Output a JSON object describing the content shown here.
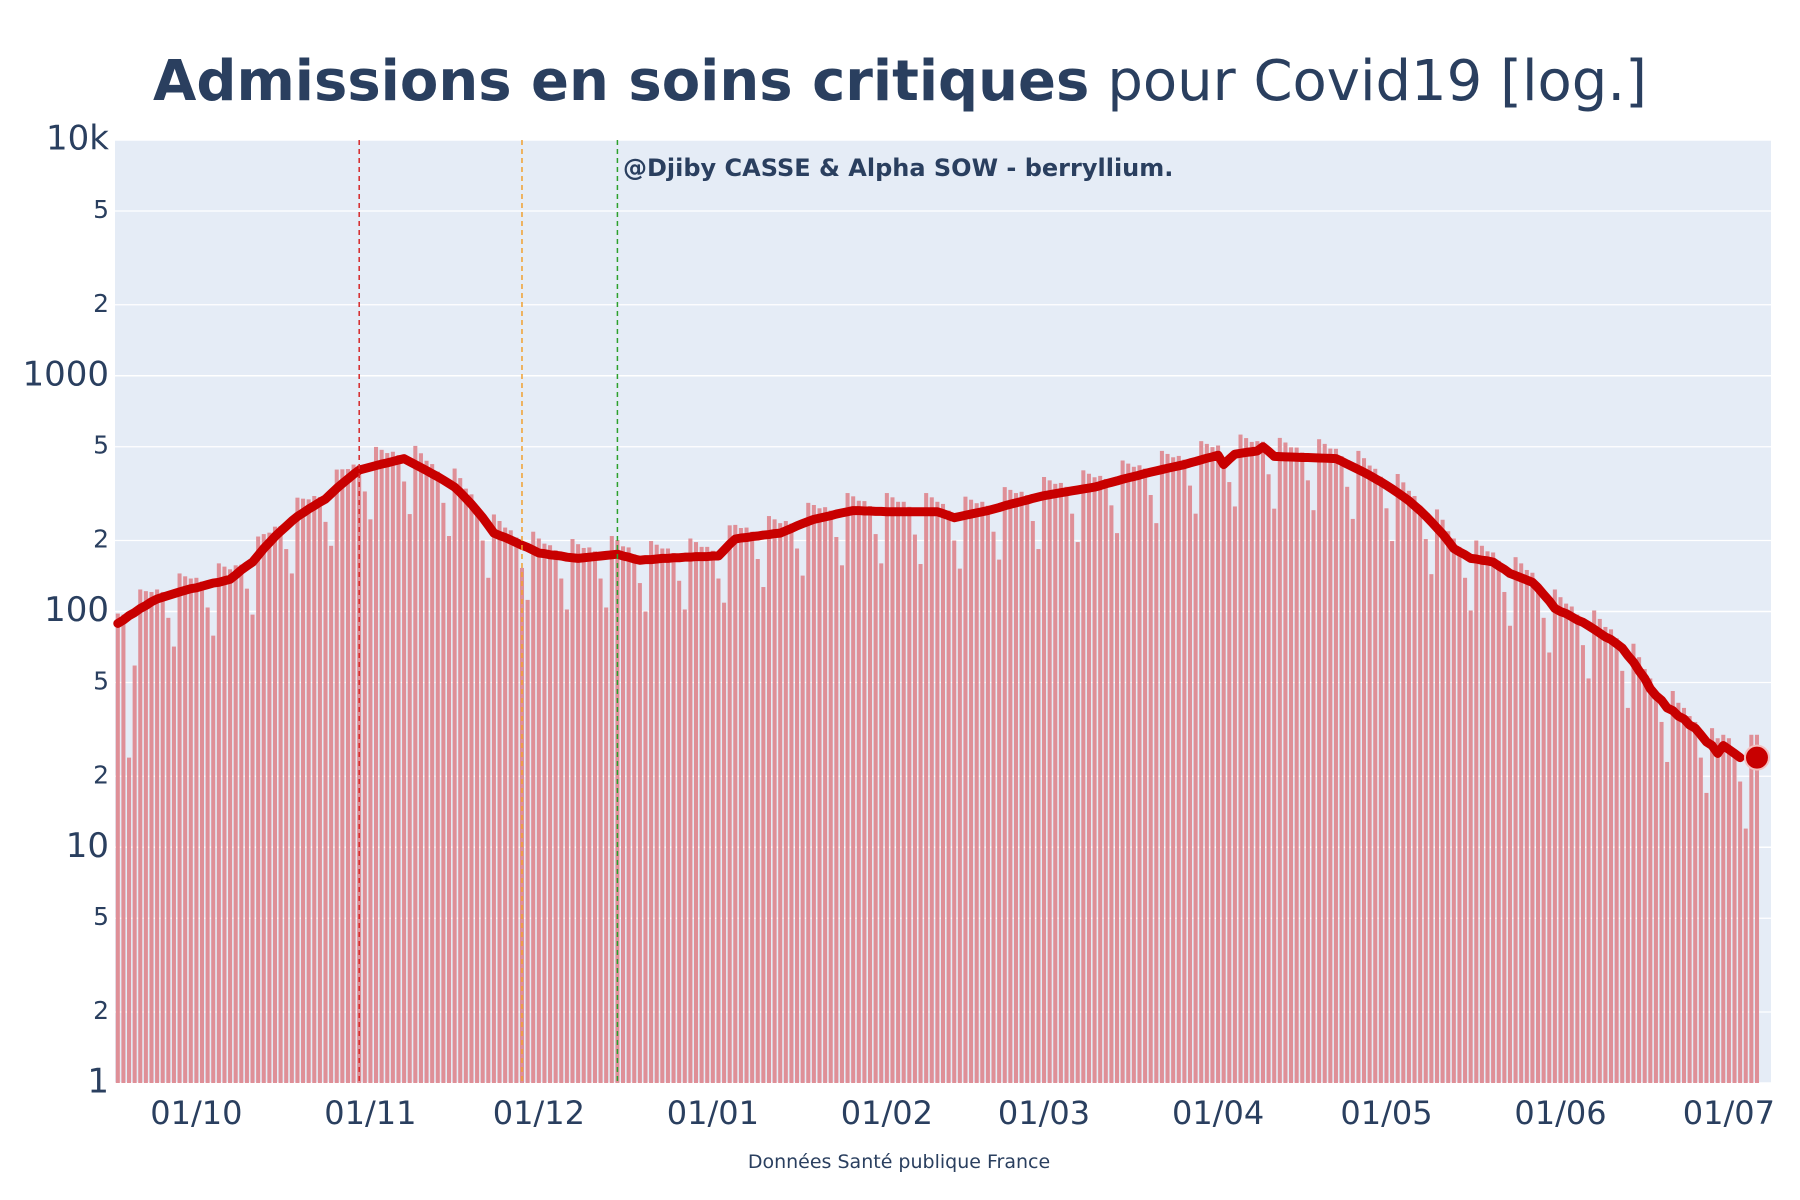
{
  "chart_data": {
    "type": "bar",
    "title_bold": "Admissions en soins critiques",
    "title_rest": "pour Covid19 [log.]",
    "annotation": "@Djiby CASSE & Alpha SOW - berryllium.",
    "source": "Données Santé publique France",
    "log_scale": true,
    "grid": true,
    "ylim": [
      1,
      10000
    ],
    "yticks": [
      1,
      2,
      5,
      10,
      {
        "value": 20,
        "label": "2"
      },
      {
        "value": 50,
        "label": "5"
      },
      100,
      {
        "value": 200,
        "label": "2"
      },
      {
        "value": 500,
        "label": "5"
      },
      1000,
      {
        "value": 2000,
        "label": "2"
      },
      {
        "value": 5000,
        "label": "5"
      },
      {
        "value": 10000,
        "label": "10k"
      }
    ],
    "vlines": [
      {
        "x": 43,
        "color": "#d62728"
      },
      {
        "x": 72,
        "color": "#f0a030"
      },
      {
        "x": 89,
        "color": "#2ca02c"
      }
    ],
    "categories": [
      null,
      null,
      null,
      null,
      null,
      null,
      null,
      null,
      null,
      null,
      null,
      null,
      null,
      null,
      "01/10",
      null,
      null,
      null,
      null,
      null,
      null,
      null,
      null,
      null,
      null,
      null,
      null,
      null,
      null,
      null,
      null,
      null,
      null,
      null,
      null,
      null,
      null,
      null,
      null,
      null,
      null,
      null,
      null,
      null,
      null,
      "01/11",
      null,
      null,
      null,
      null,
      null,
      null,
      null,
      null,
      null,
      null,
      null,
      null,
      null,
      null,
      null,
      null,
      null,
      null,
      null,
      null,
      null,
      null,
      null,
      null,
      null,
      null,
      null,
      null,
      null,
      "01/12",
      null,
      null,
      null,
      null,
      null,
      null,
      null,
      null,
      null,
      null,
      null,
      null,
      null,
      null,
      null,
      null,
      null,
      null,
      null,
      null,
      null,
      null,
      null,
      null,
      null,
      null,
      null,
      null,
      null,
      null,
      "01/01",
      null,
      null,
      null,
      null,
      null,
      null,
      null,
      null,
      null,
      null,
      null,
      null,
      null,
      null,
      null,
      null,
      null,
      null,
      null,
      null,
      null,
      null,
      null,
      null,
      null,
      null,
      null,
      null,
      null,
      null,
      "01/02",
      null,
      null,
      null,
      null,
      null,
      null,
      null,
      null,
      null,
      null,
      null,
      null,
      null,
      null,
      null,
      null,
      null,
      null,
      null,
      null,
      null,
      null,
      null,
      null,
      null,
      null,
      null,
      "01/03",
      null,
      null,
      null,
      null,
      null,
      null,
      null,
      null,
      null,
      null,
      null,
      null,
      null,
      null,
      null,
      null,
      null,
      null,
      null,
      null,
      null,
      null,
      null,
      null,
      null,
      null,
      null,
      null,
      null,
      null,
      "01/04",
      null,
      null,
      null,
      null,
      null,
      null,
      null,
      null,
      null,
      null,
      null,
      null,
      null,
      null,
      null,
      null,
      null,
      null,
      null,
      null,
      null,
      null,
      null,
      null,
      null,
      null,
      null,
      null,
      null,
      "01/05",
      null,
      null,
      null,
      null,
      null,
      null,
      null,
      null,
      null,
      null,
      null,
      null,
      null,
      null,
      null,
      null,
      null,
      null,
      null,
      null,
      null,
      null,
      null,
      null,
      null,
      null,
      null,
      null,
      null,
      null,
      "01/06",
      null,
      null,
      null,
      null,
      null,
      null,
      null,
      null,
      null,
      null,
      null,
      null,
      null,
      null,
      null,
      null,
      null,
      null,
      null,
      null,
      null,
      null,
      null,
      null,
      null,
      null,
      null,
      null,
      null,
      "01/07",
      null,
      null,
      null,
      null,
      null
    ],
    "series": [
      {
        "type": "bar",
        "color": "#df8f97",
        "values": [
          98,
          97,
          24,
          59,
          124,
          122,
          121,
          124,
          121,
          94,
          71,
          145,
          141,
          138,
          139,
          134,
          104,
          79,
          160,
          155,
          151,
          157,
          158,
          125,
          97,
          208,
          213,
          216,
          229,
          230,
          184,
          145,
          304,
          301,
          299,
          309,
          306,
          240,
          190,
          400,
          401,
          402,
          420,
          418,
          323,
          246,
          499,
          485,
          470,
          476,
          461,
          356,
          259,
          504,
          469,
          436,
          422,
          392,
          289,
          209,
          404,
          368,
          332,
          314,
          280,
          200,
          139,
          258,
          242,
          227,
          221,
          206,
          153,
          112,
          218,
          204,
          194,
          191,
          182,
          138,
          102,
          203,
          193,
          186,
          187,
          180,
          138,
          104,
          209,
          201,
          189,
          187,
          175,
          132,
          100,
          199,
          192,
          185,
          185,
          177,
          135,
          102,
          204,
          197,
          188,
          188,
          181,
          138,
          109,
          232,
          233,
          226,
          227,
          218,
          167,
          127,
          254,
          246,
          237,
          242,
          236,
          185,
          142,
          289,
          283,
          274,
          277,
          268,
          207,
          157,
          318,
          308,
          295,
          294,
          280,
          213,
          160,
          318,
          305,
          292,
          292,
          278,
          212,
          159,
          318,
          305,
          292,
          286,
          268,
          200,
          152,
          307,
          298,
          288,
          292,
          281,
          218,
          166,
          337,
          328,
          318,
          322,
          312,
          242,
          184,
          372,
          360,
          348,
          351,
          338,
          260,
          197,
          397,
          384,
          371,
          376,
          365,
          282,
          215,
          437,
          424,
          411,
          417,
          404,
          312,
          237,
          480,
          466,
          451,
          457,
          441,
          342,
          260,
          528,
          514,
          498,
          506,
          441,
          354,
          279,
          563,
          544,
          524,
          528,
          525,
          382,
          273,
          545,
          521,
          497,
          496,
          473,
          360,
          269,
          538,
          514,
          491,
          490,
          456,
          338,
          247,
          480,
          447,
          416,
          403,
          373,
          274,
          199,
          383,
          353,
          325,
          309,
          281,
          203,
          144,
          271,
          245,
          219,
          204,
          188,
          139,
          101,
          200,
          190,
          180,
          178,
          164,
          121,
          87,
          170,
          160,
          150,
          146,
          132,
          94,
          67,
          124,
          115,
          108,
          105,
          97,
          72,
          52,
          101,
          93,
          86,
          84,
          77,
          56,
          39,
          73,
          64,
          57,
          52,
          46,
          34,
          23,
          46,
          41,
          39,
          36,
          34,
          24,
          17,
          32,
          29,
          30,
          29,
          26,
          19,
          12,
          30,
          30
        ]
      },
      {
        "type": "line",
        "color": "#c80000",
        "values": [
          89,
          92,
          96,
          99,
          103,
          106,
          110,
          113,
          115,
          117,
          119,
          121,
          123,
          125,
          126,
          128,
          130,
          132,
          133,
          135,
          137,
          143,
          150,
          156,
          162,
          173,
          185,
          196,
          208,
          219,
          230,
          242,
          253,
          262,
          272,
          281,
          291,
          300,
          316,
          333,
          349,
          365,
          382,
          398,
          404,
          410,
          416,
          422,
          427,
          433,
          439,
          445,
          432,
          420,
          408,
          396,
          384,
          373,
          361,
          349,
          337,
          320,
          302,
          285,
          267,
          250,
          232,
          215,
          210,
          206,
          201,
          196,
          191,
          187,
          182,
          177,
          176,
          174,
          173,
          172,
          170,
          169,
          168,
          169,
          170,
          171,
          172,
          173,
          174,
          175,
          172,
          170,
          167,
          165,
          166,
          166,
          167,
          168,
          168,
          169,
          169,
          170,
          170,
          171,
          171,
          171,
          172,
          172,
          182,
          193,
          203,
          205,
          206,
          208,
          209,
          211,
          212,
          214,
          215,
          220,
          225,
          231,
          236,
          241,
          246,
          249,
          252,
          255,
          259,
          262,
          265,
          268,
          268,
          267,
          267,
          266,
          266,
          265,
          265,
          265,
          265,
          265,
          265,
          265,
          265,
          265,
          265,
          260,
          255,
          250,
          253,
          256,
          259,
          262,
          265,
          268,
          272,
          276,
          281,
          285,
          289,
          293,
          297,
          302,
          306,
          310,
          313,
          316,
          319,
          322,
          325,
          328,
          331,
          334,
          337,
          342,
          348,
          353,
          358,
          364,
          369,
          374,
          379,
          385,
          390,
          395,
          400,
          405,
          410,
          415,
          420,
          427,
          433,
          440,
          447,
          453,
          460,
          420,
          443,
          465,
          469,
          473,
          476,
          480,
          500,
          478,
          455,
          454,
          453,
          452,
          451,
          450,
          450,
          449,
          448,
          447,
          446,
          445,
          434,
          422,
          411,
          400,
          389,
          378,
          366,
          355,
          343,
          331,
          319,
          307,
          295,
          281,
          268,
          254,
          240,
          226,
          213,
          199,
          185,
          179,
          174,
          168,
          167,
          165,
          164,
          162,
          156,
          151,
          145,
          142,
          139,
          136,
          133,
          126,
          118,
          111,
          103,
          100,
          98,
          95,
          92,
          90,
          87,
          84,
          81,
          78,
          76,
          73,
          70,
          65,
          61,
          56,
          52,
          47,
          44,
          42,
          39,
          38,
          36,
          35,
          33,
          32,
          30,
          28,
          27,
          25,
          27,
          26,
          25,
          24,
          null,
          null,
          null
        ]
      }
    ]
  }
}
